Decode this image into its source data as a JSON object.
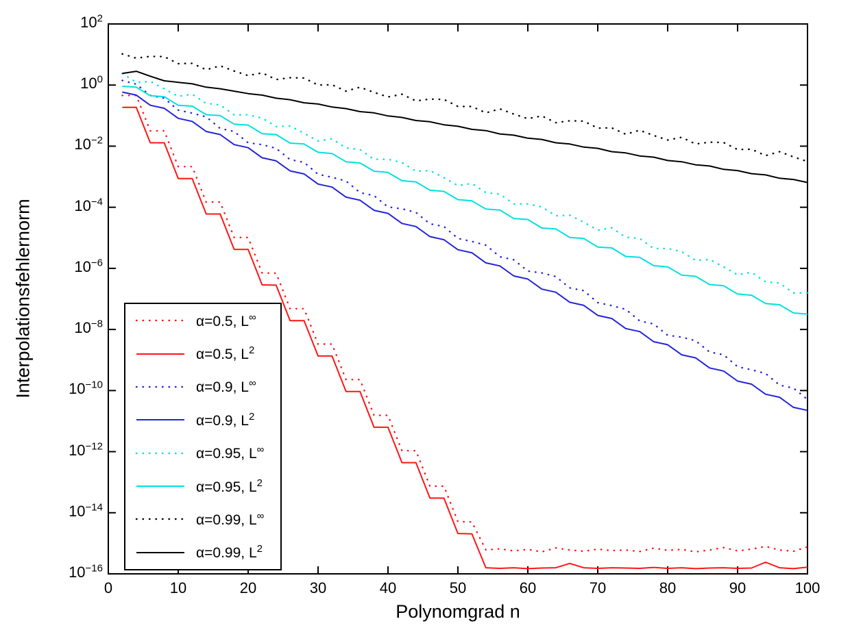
{
  "chart_data": {
    "type": "line",
    "title": "",
    "xlabel": "Polynomgrad n",
    "ylabel": "Interpolationsfehlernorm",
    "x_scale": "linear",
    "y_scale": "log10",
    "xlim": [
      0,
      100
    ],
    "ylim_exponents": [
      -16,
      2
    ],
    "grid": false,
    "legend_position": "lower-left",
    "x_tick_values": [
      0,
      10,
      20,
      30,
      40,
      50,
      60,
      70,
      80,
      90,
      100
    ],
    "x_tick_labels": [
      "0",
      "10",
      "20",
      "30",
      "40",
      "50",
      "60",
      "70",
      "80",
      "90",
      "100"
    ],
    "y_tick_exponents": [
      2,
      0,
      -2,
      -4,
      -6,
      -8,
      -10,
      -12,
      -14,
      -16
    ],
    "y_tick_base": "10",
    "x": [
      2,
      4,
      6,
      8,
      10,
      12,
      14,
      16,
      18,
      20,
      22,
      24,
      26,
      28,
      30,
      32,
      34,
      36,
      38,
      40,
      42,
      44,
      46,
      48,
      50,
      52,
      54,
      56,
      58,
      60,
      62,
      64,
      66,
      68,
      70,
      72,
      74,
      76,
      78,
      80,
      82,
      84,
      86,
      88,
      90,
      92,
      94,
      96,
      98,
      100
    ],
    "series": [
      {
        "name": "alpha05-linf",
        "alpha": 0.5,
        "norm": "L-infinity",
        "label_base": "α=0.5, L",
        "label_sup": "∞",
        "color": "#ff1414",
        "style": "dotted",
        "log10y": [
          -0.34,
          -0.34,
          -1.5,
          -1.5,
          -2.67,
          -2.67,
          -3.83,
          -3.83,
          -4.99,
          -4.99,
          -6.15,
          -6.16,
          -7.32,
          -7.32,
          -8.48,
          -8.48,
          -9.64,
          -9.64,
          -10.81,
          -10.81,
          -11.97,
          -11.97,
          -13.13,
          -13.13,
          -14.29,
          -14.3,
          -15.22,
          -15.18,
          -15.25,
          -15.2,
          -15.28,
          -15.15,
          -15.22,
          -15.26,
          -15.19,
          -15.24,
          -15.22,
          -15.27,
          -15.16,
          -15.23,
          -15.2,
          -15.28,
          -15.22,
          -15.14,
          -15.25,
          -15.19,
          -15.1,
          -15.22,
          -15.26,
          -15.12
        ]
      },
      {
        "name": "alpha05-l2",
        "alpha": 0.5,
        "norm": "L2",
        "label_base": "α=0.5, L",
        "label_sup": "2",
        "color": "#ff1414",
        "style": "solid",
        "log10y": [
          -0.73,
          -0.73,
          -1.89,
          -1.89,
          -3.06,
          -3.06,
          -4.22,
          -4.22,
          -5.38,
          -5.38,
          -6.54,
          -6.55,
          -7.71,
          -7.71,
          -8.87,
          -8.87,
          -10.03,
          -10.03,
          -11.2,
          -11.2,
          -12.36,
          -12.36,
          -13.52,
          -13.52,
          -14.68,
          -14.69,
          -15.8,
          -15.82,
          -15.8,
          -15.83,
          -15.81,
          -15.8,
          -15.66,
          -15.8,
          -15.82,
          -15.8,
          -15.81,
          -15.82,
          -15.79,
          -15.82,
          -15.8,
          -15.83,
          -15.81,
          -15.8,
          -15.82,
          -15.81,
          -15.62,
          -15.8,
          -15.83,
          -15.78
        ]
      },
      {
        "name": "alpha09-linf",
        "alpha": 0.9,
        "norm": "L-infinity",
        "label_base": "α=0.9, L",
        "label_sup": "∞",
        "color": "#2222dd",
        "style": "dotted",
        "log10y": [
          0.15,
          0.03,
          -0.34,
          -0.43,
          -0.82,
          -0.92,
          -1.04,
          -1.42,
          -1.52,
          -1.89,
          -1.95,
          -2.07,
          -2.44,
          -2.53,
          -2.92,
          -3.02,
          -3.14,
          -3.52,
          -3.62,
          -3.99,
          -4.05,
          -4.17,
          -4.54,
          -4.63,
          -5.02,
          -5.12,
          -5.24,
          -5.62,
          -5.72,
          -6.09,
          -6.15,
          -6.27,
          -6.64,
          -6.73,
          -7.12,
          -7.22,
          -7.34,
          -7.72,
          -7.82,
          -8.19,
          -8.25,
          -8.37,
          -8.74,
          -8.83,
          -9.22,
          -9.32,
          -9.44,
          -9.82,
          -9.92,
          -10.29
        ]
      },
      {
        "name": "alpha09-l2",
        "alpha": 0.9,
        "norm": "L2",
        "label_base": "α=0.9, L",
        "label_sup": "2",
        "color": "#2222dd",
        "style": "solid",
        "log10y": [
          -0.23,
          -0.33,
          -0.66,
          -0.76,
          -1.09,
          -1.19,
          -1.52,
          -1.62,
          -1.95,
          -2.05,
          -2.38,
          -2.48,
          -2.81,
          -2.91,
          -3.24,
          -3.34,
          -3.67,
          -3.77,
          -4.1,
          -4.2,
          -4.53,
          -4.63,
          -4.96,
          -5.06,
          -5.39,
          -5.49,
          -5.82,
          -5.92,
          -6.25,
          -6.35,
          -6.68,
          -6.78,
          -7.11,
          -7.21,
          -7.54,
          -7.64,
          -7.97,
          -8.07,
          -8.4,
          -8.5,
          -8.83,
          -8.93,
          -9.26,
          -9.36,
          -9.69,
          -9.79,
          -10.12,
          -10.22,
          -10.55,
          -10.65
        ]
      },
      {
        "name": "alpha095-linf",
        "alpha": 0.95,
        "norm": "L-infinity",
        "label_base": "α=0.95, L",
        "label_sup": "∞",
        "color": "#00e0e0",
        "style": "dotted",
        "log10y": [
          0.38,
          0.09,
          0.12,
          -0.12,
          -0.37,
          -0.3,
          -0.6,
          -0.65,
          -0.98,
          -0.97,
          -1.08,
          -1.36,
          -1.34,
          -1.58,
          -1.83,
          -1.76,
          -2.06,
          -2.11,
          -2.43,
          -2.43,
          -2.54,
          -2.82,
          -2.8,
          -3.03,
          -3.29,
          -3.22,
          -3.52,
          -3.57,
          -3.89,
          -3.89,
          -3.99,
          -4.28,
          -4.26,
          -4.49,
          -4.75,
          -4.67,
          -4.98,
          -5.02,
          -5.35,
          -5.35,
          -5.45,
          -5.74,
          -5.71,
          -5.95,
          -6.21,
          -6.13,
          -6.44,
          -6.48,
          -6.81,
          -6.8
        ]
      },
      {
        "name": "alpha095-l2",
        "alpha": 0.95,
        "norm": "L2",
        "label_base": "α=0.95, L",
        "label_sup": "2",
        "color": "#00e0e0",
        "style": "solid",
        "log10y": [
          -0.04,
          -0.07,
          -0.35,
          -0.38,
          -0.66,
          -0.69,
          -0.97,
          -1.0,
          -1.28,
          -1.31,
          -1.59,
          -1.62,
          -1.9,
          -1.93,
          -2.2,
          -2.24,
          -2.51,
          -2.55,
          -2.82,
          -2.86,
          -3.13,
          -3.17,
          -3.44,
          -3.48,
          -3.75,
          -3.79,
          -4.06,
          -4.09,
          -4.37,
          -4.4,
          -4.68,
          -4.71,
          -4.99,
          -5.02,
          -5.3,
          -5.33,
          -5.61,
          -5.64,
          -5.91,
          -5.95,
          -6.22,
          -6.26,
          -6.53,
          -6.57,
          -6.84,
          -6.88,
          -7.15,
          -7.19,
          -7.46,
          -7.5
        ]
      },
      {
        "name": "alpha099-linf",
        "alpha": 0.99,
        "norm": "L-infinity",
        "label_base": "α=0.99, L",
        "label_sup": "∞",
        "color": "#000000",
        "style": "dotted",
        "log10y": [
          1.02,
          0.88,
          0.94,
          0.93,
          0.7,
          0.71,
          0.5,
          0.63,
          0.46,
          0.31,
          0.4,
          0.18,
          0.24,
          0.23,
          0.0,
          0.01,
          -0.2,
          -0.07,
          -0.24,
          -0.39,
          -0.3,
          -0.52,
          -0.46,
          -0.47,
          -0.7,
          -0.7,
          -0.91,
          -0.78,
          -0.95,
          -1.1,
          -1.01,
          -1.23,
          -1.17,
          -1.18,
          -1.41,
          -1.4,
          -1.61,
          -1.48,
          -1.65,
          -1.8,
          -1.71,
          -1.93,
          -1.87,
          -1.88,
          -2.11,
          -2.1,
          -2.31,
          -2.18,
          -2.35,
          -2.5
        ]
      },
      {
        "name": "alpha099-l2",
        "alpha": 0.99,
        "norm": "L2",
        "label_base": "α=0.99, L",
        "label_sup": "2",
        "color": "#000000",
        "style": "solid",
        "log10y": [
          0.38,
          0.45,
          0.29,
          0.14,
          0.09,
          0.04,
          -0.07,
          -0.12,
          -0.2,
          -0.28,
          -0.33,
          -0.43,
          -0.48,
          -0.58,
          -0.62,
          -0.72,
          -0.77,
          -0.87,
          -0.91,
          -1.01,
          -1.06,
          -1.16,
          -1.2,
          -1.3,
          -1.35,
          -1.45,
          -1.49,
          -1.6,
          -1.64,
          -1.74,
          -1.78,
          -1.89,
          -1.93,
          -2.03,
          -2.07,
          -2.18,
          -2.22,
          -2.32,
          -2.36,
          -2.47,
          -2.51,
          -2.61,
          -2.65,
          -2.76,
          -2.8,
          -2.9,
          -2.94,
          -3.05,
          -3.09,
          -3.19
        ]
      }
    ]
  }
}
